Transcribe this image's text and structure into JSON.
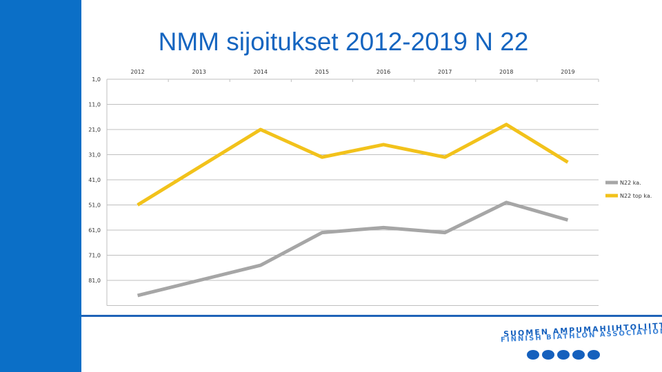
{
  "slide": {
    "title": "NMM sijoitukset 2012-2019 N 22"
  },
  "logo": {
    "line1": "SUOMEN AMPUMAHIIHTOLIITTO",
    "line2": "FINNISH BIATHLON ASSOCIATION"
  },
  "colors": {
    "sidebar": "#0b6fc7",
    "title": "#1565c0",
    "series_gray": "#a6a6a6",
    "series_yellow": "#f2c21b"
  },
  "chart_data": {
    "type": "line",
    "title": "NMM sijoitukset 2012-2019 N 22",
    "categories": [
      "2012",
      "2013",
      "2014",
      "2015",
      "2016",
      "2017",
      "2018",
      "2019"
    ],
    "x_axis_position": "top",
    "y_axis_reversed": true,
    "ylim": [
      1,
      91
    ],
    "yticks": [
      1,
      11,
      21,
      31,
      41,
      51,
      61,
      71,
      81
    ],
    "ytick_labels": [
      "1,0",
      "11,0",
      "21,0",
      "31,0",
      "41,0",
      "51,0",
      "61,0",
      "71,0",
      "81,0"
    ],
    "series": [
      {
        "name": "N22 ka.",
        "color": "#a6a6a6",
        "values": [
          87,
          81,
          75,
          62,
          60,
          62,
          50,
          57
        ]
      },
      {
        "name": "N22 top ka.",
        "color": "#f2c21b",
        "values": [
          51,
          36,
          21,
          32,
          27,
          32,
          19,
          34
        ]
      }
    ],
    "legend_position": "right"
  }
}
